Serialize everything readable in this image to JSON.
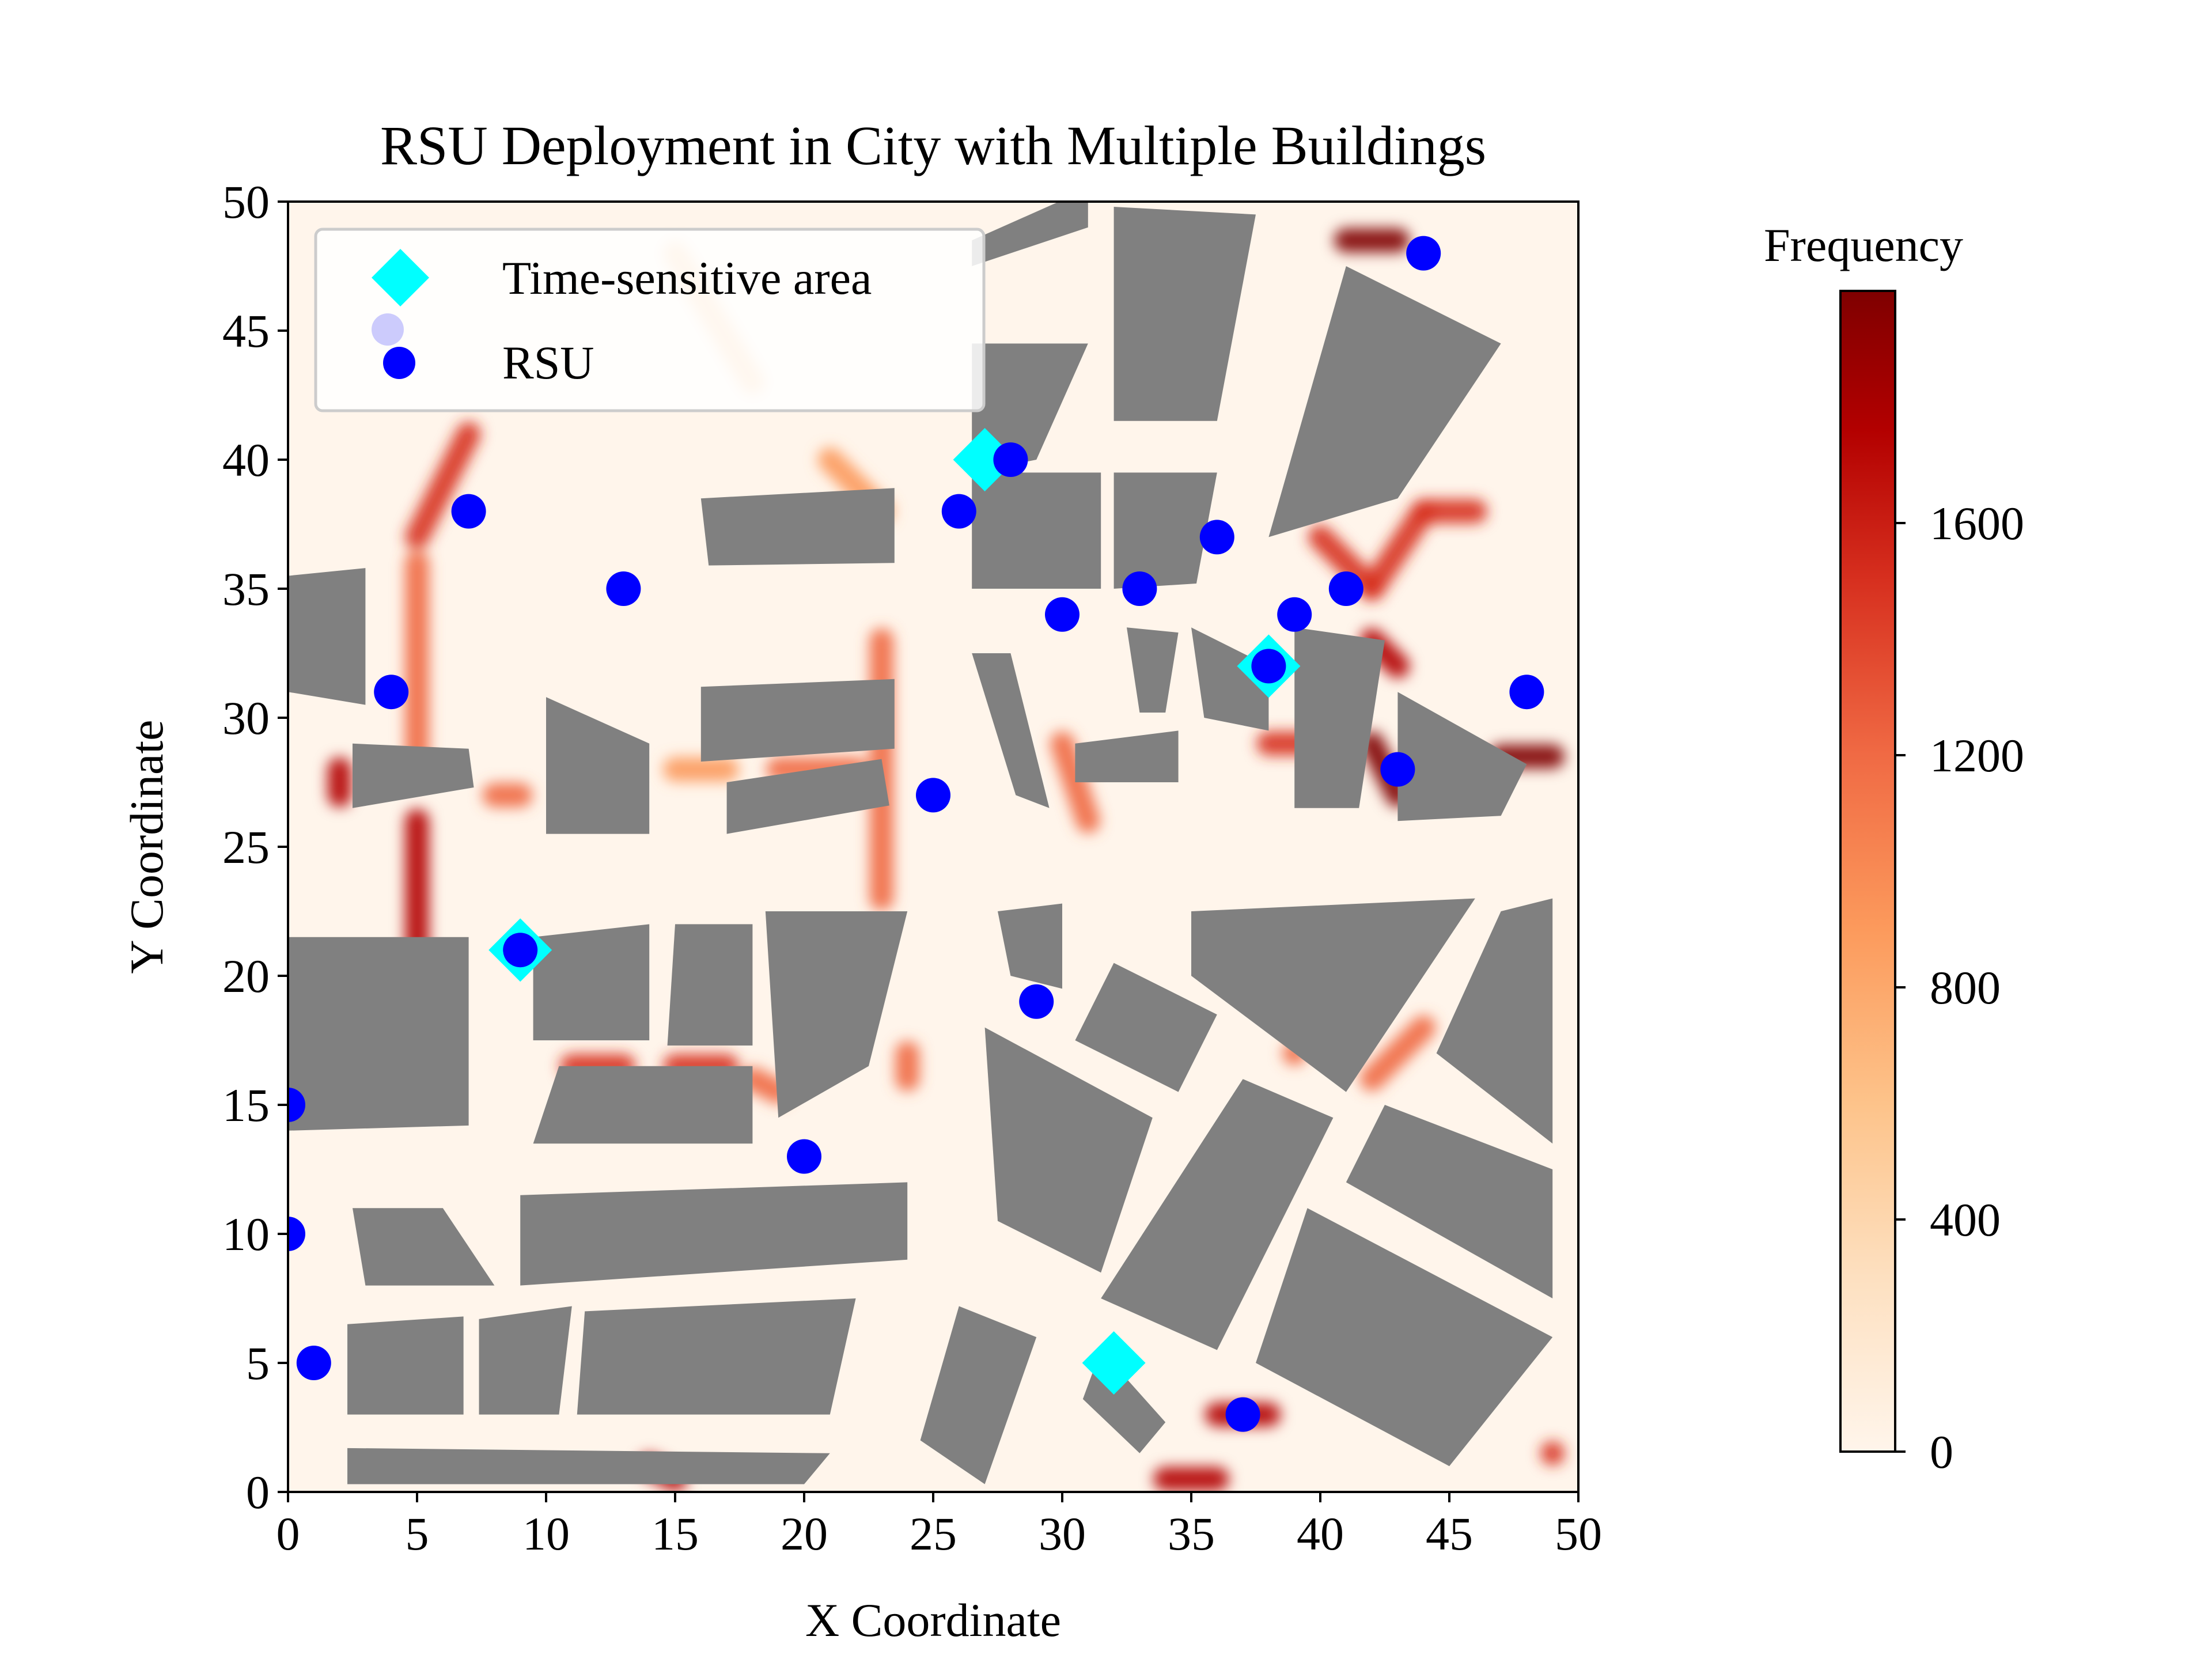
{
  "chart_data": {
    "type": "scatter",
    "title": "RSU Deployment in City with Multiple Buildings",
    "xlabel": "X Coordinate",
    "ylabel": "Y Coordinate",
    "xlim": [
      0,
      50
    ],
    "ylim": [
      0,
      50
    ],
    "xticks": [
      "0",
      "5",
      "10",
      "15",
      "20",
      "25",
      "30",
      "35",
      "40",
      "45",
      "50"
    ],
    "yticks": [
      "0",
      "5",
      "10",
      "15",
      "20",
      "25",
      "30",
      "35",
      "40",
      "45",
      "50"
    ],
    "legend": {
      "placement": "top-left",
      "entries": [
        {
          "label": "Time-sensitive area",
          "marker": "diamond",
          "color": "#00ffff"
        },
        {
          "label": "RSU",
          "marker": "circle",
          "color": "#0000ff"
        }
      ]
    },
    "colorbar": {
      "label": "Frequency",
      "range": [
        0,
        2000
      ],
      "ticks": [
        "0",
        "400",
        "800",
        "1200",
        "1600"
      ],
      "colormap": [
        "#fff5eb",
        "#fde0c0",
        "#fdc38a",
        "#fc9a5c",
        "#f06a44",
        "#d7301f",
        "#b30000",
        "#7f0000"
      ]
    },
    "background_color": "#fff5eb",
    "building_color": "#808080",
    "time_sensitive_areas": [
      {
        "x": 27,
        "y": 40
      },
      {
        "x": 38,
        "y": 32
      },
      {
        "x": 9,
        "y": 21
      },
      {
        "x": 32,
        "y": 5
      }
    ],
    "rsus": [
      {
        "x": 44,
        "y": 48
      },
      {
        "x": 28,
        "y": 40
      },
      {
        "x": 7,
        "y": 38
      },
      {
        "x": 26,
        "y": 38
      },
      {
        "x": 36,
        "y": 37
      },
      {
        "x": 13,
        "y": 35
      },
      {
        "x": 33,
        "y": 35
      },
      {
        "x": 41,
        "y": 35
      },
      {
        "x": 30,
        "y": 34
      },
      {
        "x": 39,
        "y": 34
      },
      {
        "x": 38,
        "y": 32
      },
      {
        "x": 4,
        "y": 31
      },
      {
        "x": 48,
        "y": 31
      },
      {
        "x": 43,
        "y": 28
      },
      {
        "x": 25,
        "y": 27
      },
      {
        "x": 9,
        "y": 21
      },
      {
        "x": 29,
        "y": 19
      },
      {
        "x": 0,
        "y": 15
      },
      {
        "x": 20,
        "y": 13
      },
      {
        "x": 0,
        "y": 10
      },
      {
        "x": 1,
        "y": 5
      },
      {
        "x": 37,
        "y": 3
      }
    ],
    "heat_segments": [
      {
        "x1": 5,
        "y1": 37,
        "x2": 7,
        "y2": 41,
        "v": 1500
      },
      {
        "x1": 5,
        "y1": 36,
        "x2": 5,
        "y2": 28,
        "v": 1100
      },
      {
        "x1": 5,
        "y1": 26,
        "x2": 5,
        "y2": 21,
        "v": 1800
      },
      {
        "x1": 2,
        "y1": 28,
        "x2": 2,
        "y2": 27,
        "v": 1700
      },
      {
        "x1": 8,
        "y1": 27,
        "x2": 9,
        "y2": 27,
        "v": 1100
      },
      {
        "x1": 11,
        "y1": 16.5,
        "x2": 13,
        "y2": 16.5,
        "v": 1300
      },
      {
        "x1": 15,
        "y1": 16.5,
        "x2": 17,
        "y2": 16.5,
        "v": 1400
      },
      {
        "x1": 18,
        "y1": 16,
        "x2": 19,
        "y2": 15.5,
        "v": 1100
      },
      {
        "x1": 24,
        "y1": 17,
        "x2": 24,
        "y2": 16,
        "v": 1100
      },
      {
        "x1": 23,
        "y1": 33,
        "x2": 23,
        "y2": 23,
        "v": 1000
      },
      {
        "x1": 21,
        "y1": 40,
        "x2": 23,
        "y2": 38,
        "v": 900
      },
      {
        "x1": 19,
        "y1": 28,
        "x2": 22,
        "y2": 28,
        "v": 1100
      },
      {
        "x1": 15,
        "y1": 28,
        "x2": 17,
        "y2": 28,
        "v": 800
      },
      {
        "x1": 30,
        "y1": 29,
        "x2": 31,
        "y2": 26,
        "v": 1100
      },
      {
        "x1": 38,
        "y1": 29,
        "x2": 40,
        "y2": 29,
        "v": 1500
      },
      {
        "x1": 40,
        "y1": 37,
        "x2": 42,
        "y2": 35,
        "v": 1500
      },
      {
        "x1": 42,
        "y1": 35,
        "x2": 44,
        "y2": 38,
        "v": 1400
      },
      {
        "x1": 44,
        "y1": 38,
        "x2": 46,
        "y2": 38,
        "v": 1500
      },
      {
        "x1": 42,
        "y1": 33,
        "x2": 43,
        "y2": 32,
        "v": 1800
      },
      {
        "x1": 42,
        "y1": 29,
        "x2": 43,
        "y2": 27,
        "v": 1900
      },
      {
        "x1": 47,
        "y1": 28.5,
        "x2": 49,
        "y2": 28.5,
        "v": 1900
      },
      {
        "x1": 41,
        "y1": 48.5,
        "x2": 43,
        "y2": 48.5,
        "v": 1900
      },
      {
        "x1": 44,
        "y1": 18,
        "x2": 42,
        "y2": 16,
        "v": 1200
      },
      {
        "x1": 39,
        "y1": 17,
        "x2": 39,
        "y2": 17,
        "v": 1000
      },
      {
        "x1": 36,
        "y1": 3,
        "x2": 38,
        "y2": 3,
        "v": 1700
      },
      {
        "x1": 34,
        "y1": 0.5,
        "x2": 36,
        "y2": 0.5,
        "v": 1700
      },
      {
        "x1": 14,
        "y1": 1,
        "x2": 15,
        "y2": 0.5,
        "v": 1600
      },
      {
        "x1": 49,
        "y1": 1.5,
        "x2": 49,
        "y2": 1.5,
        "v": 1300
      },
      {
        "x1": 15,
        "y1": 48,
        "x2": 18,
        "y2": 43,
        "v": 500
      }
    ],
    "buildings": [
      [
        [
          0,
          35.5
        ],
        [
          3,
          35.8
        ],
        [
          3,
          30.5
        ],
        [
          0,
          31
        ]
      ],
      [
        [
          2.5,
          29
        ],
        [
          7,
          28.8
        ],
        [
          7.2,
          27.3
        ],
        [
          2.5,
          26.5
        ]
      ],
      [
        [
          10,
          30.8
        ],
        [
          14,
          29
        ],
        [
          14,
          25.5
        ],
        [
          10,
          25.5
        ]
      ],
      [
        [
          16,
          31.2
        ],
        [
          23.5,
          31.5
        ],
        [
          23.5,
          28.8
        ],
        [
          16,
          28.3
        ]
      ],
      [
        [
          17,
          27.5
        ],
        [
          23,
          28.4
        ],
        [
          23.3,
          26.6
        ],
        [
          17,
          25.5
        ]
      ],
      [
        [
          16,
          38.5
        ],
        [
          23.5,
          38.9
        ],
        [
          23.5,
          36
        ],
        [
          16.3,
          35.9
        ]
      ],
      [
        [
          26.5,
          32.5
        ],
        [
          28,
          32.5
        ],
        [
          29.5,
          26.5
        ],
        [
          28.2,
          27
        ]
      ],
      [
        [
          30.5,
          29
        ],
        [
          34.5,
          29.5
        ],
        [
          34.5,
          27.5
        ],
        [
          30.5,
          27.5
        ]
      ],
      [
        [
          32.5,
          33.5
        ],
        [
          34.5,
          33.3
        ],
        [
          34,
          30.2
        ],
        [
          33,
          30.2
        ]
      ],
      [
        [
          35,
          33.5
        ],
        [
          38,
          32
        ],
        [
          38,
          29.5
        ],
        [
          35.5,
          30
        ]
      ],
      [
        [
          39,
          33.5
        ],
        [
          42.5,
          33
        ],
        [
          41.5,
          26.5
        ],
        [
          39,
          26.5
        ]
      ],
      [
        [
          43,
          31
        ],
        [
          48,
          28.2
        ],
        [
          47,
          26.2
        ],
        [
          43,
          26
        ]
      ],
      [
        [
          26.5,
          39.5
        ],
        [
          31.5,
          39.5
        ],
        [
          31.5,
          35
        ],
        [
          26.5,
          35
        ]
      ],
      [
        [
          32,
          39.5
        ],
        [
          36,
          39.5
        ],
        [
          35.2,
          35.2
        ],
        [
          32,
          35
        ]
      ],
      [
        [
          26.5,
          44.5
        ],
        [
          31,
          44.5
        ],
        [
          29,
          40
        ],
        [
          26.5,
          39.5
        ]
      ],
      [
        [
          26.5,
          48.5
        ],
        [
          31,
          50.5
        ],
        [
          31,
          49
        ],
        [
          26.5,
          47.5
        ]
      ],
      [
        [
          32,
          49.8
        ],
        [
          37.5,
          49.5
        ],
        [
          36,
          41.5
        ],
        [
          32,
          41.5
        ]
      ],
      [
        [
          41,
          47.5
        ],
        [
          47,
          44.5
        ],
        [
          43,
          38.5
        ],
        [
          38,
          37
        ]
      ],
      [
        [
          0,
          21.5
        ],
        [
          7,
          21.5
        ],
        [
          7,
          14.2
        ],
        [
          0,
          14
        ]
      ],
      [
        [
          9.5,
          21.5
        ],
        [
          14,
          22
        ],
        [
          14,
          17.5
        ],
        [
          9.5,
          17.5
        ]
      ],
      [
        [
          15,
          22
        ],
        [
          18,
          22
        ],
        [
          18,
          17.3
        ],
        [
          14.7,
          17.3
        ]
      ],
      [
        [
          18.5,
          22.5
        ],
        [
          24,
          22.5
        ],
        [
          22.5,
          16.5
        ],
        [
          19,
          14.5
        ]
      ],
      [
        [
          10.5,
          16.5
        ],
        [
          18,
          16.5
        ],
        [
          18,
          13.5
        ],
        [
          9.5,
          13.5
        ]
      ],
      [
        [
          27.5,
          22.5
        ],
        [
          30,
          22.8
        ],
        [
          30,
          19.5
        ],
        [
          28,
          20
        ]
      ],
      [
        [
          32,
          20.5
        ],
        [
          36,
          18.5
        ],
        [
          34.5,
          15.5
        ],
        [
          30.5,
          17.5
        ]
      ],
      [
        [
          35,
          22.5
        ],
        [
          46,
          23
        ],
        [
          41,
          15.5
        ],
        [
          35,
          20
        ]
      ],
      [
        [
          47,
          22.5
        ],
        [
          49,
          23
        ],
        [
          49,
          13.5
        ],
        [
          44.5,
          17
        ]
      ],
      [
        [
          27,
          18
        ],
        [
          33.5,
          14.5
        ],
        [
          31.5,
          8.5
        ],
        [
          27.5,
          10.5
        ]
      ],
      [
        [
          37,
          16
        ],
        [
          40.5,
          14.5
        ],
        [
          36,
          5.5
        ],
        [
          31.5,
          7.5
        ]
      ],
      [
        [
          42.5,
          15
        ],
        [
          49,
          12.5
        ],
        [
          49,
          7.5
        ],
        [
          41,
          12
        ]
      ],
      [
        [
          39.5,
          11
        ],
        [
          49,
          6
        ],
        [
          45,
          1
        ],
        [
          37.5,
          5
        ]
      ],
      [
        [
          2.5,
          11
        ],
        [
          6,
          11
        ],
        [
          8,
          8
        ],
        [
          3,
          8
        ]
      ],
      [
        [
          9,
          11.5
        ],
        [
          24,
          12
        ],
        [
          24,
          9
        ],
        [
          9,
          8
        ]
      ],
      [
        [
          2.3,
          6.5
        ],
        [
          6.8,
          6.8
        ],
        [
          6.8,
          3
        ],
        [
          2.3,
          3
        ]
      ],
      [
        [
          7.4,
          6.7
        ],
        [
          11,
          7.2
        ],
        [
          10.5,
          3
        ],
        [
          7.4,
          3
        ]
      ],
      [
        [
          11.5,
          7
        ],
        [
          22,
          7.5
        ],
        [
          21,
          3
        ],
        [
          11.2,
          3
        ]
      ],
      [
        [
          2.3,
          1.7
        ],
        [
          21,
          1.5
        ],
        [
          20,
          0.3
        ],
        [
          2.3,
          0.3
        ]
      ],
      [
        [
          26,
          7.2
        ],
        [
          29,
          6
        ],
        [
          27,
          0.3
        ],
        [
          24.5,
          2
        ]
      ],
      [
        [
          31.5,
          5.5
        ],
        [
          34,
          2.7
        ],
        [
          33,
          1.5
        ],
        [
          30.8,
          3.6
        ]
      ]
    ]
  }
}
